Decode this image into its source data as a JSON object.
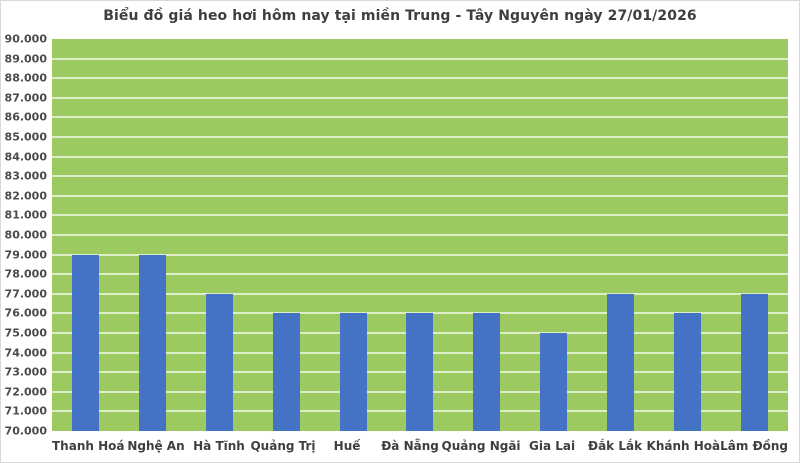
{
  "chart_data": {
    "type": "bar",
    "title": "Biểu đồ giá heo hơi hôm nay tại miền Trung - Tây Nguyên ngày 27/01/2026",
    "categories": [
      "Thanh Hoá",
      "Nghệ An",
      "Hà Tĩnh",
      "Quảng Trị",
      "Huế",
      "Đà Nẵng",
      "Quảng Ngãi",
      "Gia Lai",
      "Đắk Lắk",
      "Khánh Hoà",
      "Lâm Đồng"
    ],
    "values": [
      79000,
      79000,
      77000,
      76000,
      76000,
      76000,
      76000,
      75000,
      77000,
      76000,
      77000
    ],
    "xlabel": "",
    "ylabel": "",
    "ylim": [
      70000,
      90000
    ],
    "ytick_step": 1000,
    "yticks": [
      "90.000",
      "89.000",
      "88.000",
      "87.000",
      "86.000",
      "85.000",
      "84.000",
      "83.000",
      "82.000",
      "81.000",
      "80.000",
      "79.000",
      "78.000",
      "77.000",
      "76.000",
      "75.000",
      "74.000",
      "73.000",
      "72.000",
      "71.000",
      "70.000"
    ],
    "legend": "none",
    "grid": "horizontal",
    "colors": {
      "bar": "#4472c4",
      "plot_background": "#9cca61",
      "gridline": "rgba(255,255,255,0.65)",
      "title_text": "#3f3f3f",
      "axis_text": "#4a4a4a",
      "chart_border": "#d9d9d9",
      "chart_background": "#ffffff"
    }
  }
}
